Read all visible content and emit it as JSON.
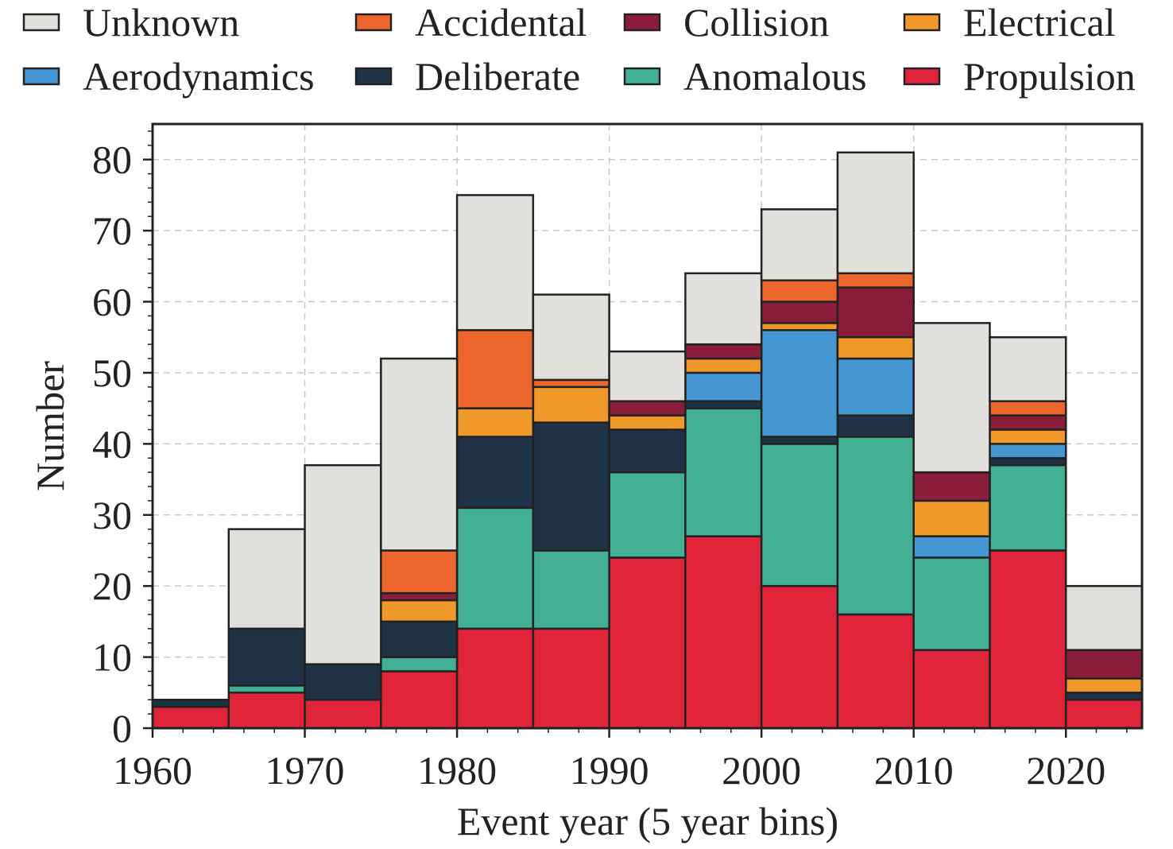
{
  "chart_data": {
    "type": "bar",
    "stacked": true,
    "xlabel": "Event year (5 year bins)",
    "ylabel": "Number",
    "xlim": [
      1960,
      2025
    ],
    "ylim": [
      0,
      85
    ],
    "xticks": [
      1960,
      1970,
      1980,
      1990,
      2000,
      2010,
      2020
    ],
    "yticks": [
      0,
      10,
      20,
      30,
      40,
      50,
      60,
      70,
      80
    ],
    "grid": true,
    "legend_position": "top",
    "bin_width": 5,
    "bins": [
      1960,
      1965,
      1970,
      1975,
      1980,
      1985,
      1990,
      1995,
      2000,
      2005,
      2010,
      2015,
      2020
    ],
    "legend_order": [
      "Unknown",
      "Accidental",
      "Collision",
      "Electrical",
      "Aerodynamics",
      "Deliberate",
      "Anomalous",
      "Propulsion"
    ],
    "series": [
      {
        "name": "Propulsion",
        "color": "#E0253A",
        "values": [
          3,
          5,
          4,
          8,
          14,
          14,
          24,
          27,
          20,
          16,
          11,
          25,
          4
        ]
      },
      {
        "name": "Anomalous",
        "color": "#43B095",
        "values": [
          0,
          1,
          0,
          2,
          17,
          11,
          12,
          18,
          20,
          25,
          13,
          12,
          0
        ]
      },
      {
        "name": "Deliberate",
        "color": "#1F3246",
        "values": [
          1,
          8,
          5,
          5,
          10,
          18,
          6,
          1,
          1,
          3,
          0,
          1,
          1
        ]
      },
      {
        "name": "Aerodynamics",
        "color": "#4596D1",
        "values": [
          0,
          0,
          0,
          0,
          0,
          0,
          0,
          4,
          15,
          8,
          3,
          2,
          0
        ]
      },
      {
        "name": "Electrical",
        "color": "#F0992B",
        "values": [
          0,
          0,
          0,
          3,
          4,
          5,
          2,
          2,
          1,
          3,
          5,
          2,
          2
        ]
      },
      {
        "name": "Collision",
        "color": "#8A1E3A",
        "values": [
          0,
          0,
          0,
          1,
          0,
          0,
          2,
          2,
          3,
          7,
          4,
          2,
          4
        ]
      },
      {
        "name": "Accidental",
        "color": "#EC652C",
        "values": [
          0,
          0,
          0,
          6,
          11,
          1,
          0,
          0,
          3,
          2,
          0,
          2,
          0
        ]
      },
      {
        "name": "Unknown",
        "color": "#E1E0DC",
        "values": [
          0,
          14,
          28,
          27,
          19,
          12,
          7,
          10,
          10,
          17,
          21,
          9,
          9
        ]
      }
    ]
  }
}
